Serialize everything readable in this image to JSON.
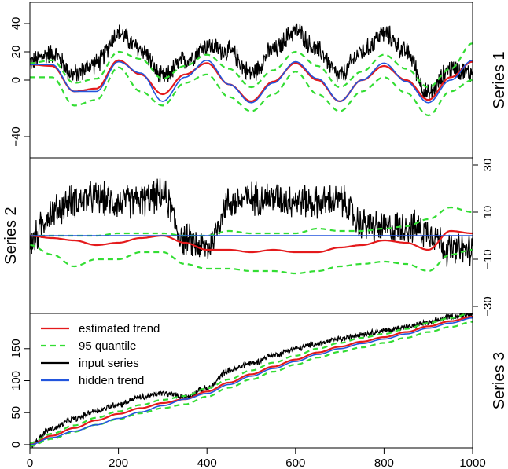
{
  "chart_data": {
    "type": "line",
    "x_range": [
      0,
      1000
    ],
    "x_ticks": [
      0,
      200,
      400,
      600,
      800,
      1000
    ],
    "colors": {
      "estimated_trend": "#e41a1c",
      "quantile": "#33dd33",
      "input_series": "#000000",
      "hidden_trend": "#2255dd"
    },
    "legend": {
      "placement": "top-left",
      "entries": [
        {
          "label": "estimated trend",
          "color": "#e41a1c",
          "dash": "solid"
        },
        {
          "label": "95 quantile",
          "color": "#33dd33",
          "dash": "dashed"
        },
        {
          "label": "input series",
          "color": "#000000",
          "dash": "solid"
        },
        {
          "label": "hidden trend",
          "color": "#2255dd",
          "dash": "solid"
        }
      ]
    },
    "panels": [
      {
        "name": "Series 1",
        "ylim": [
          -55,
          55
        ],
        "y_ticks": [
          -40,
          0,
          20,
          40
        ],
        "y_tick_labels": [
          "−40",
          "0",
          "20",
          "40"
        ],
        "y_axis_side": "left",
        "x": [
          0,
          50,
          100,
          150,
          200,
          250,
          300,
          350,
          400,
          450,
          500,
          550,
          600,
          650,
          700,
          750,
          800,
          850,
          900,
          950,
          1000
        ],
        "hidden_trend": [
          11,
          11,
          -8,
          -8,
          13,
          5,
          -15,
          2,
          14,
          -3,
          -16,
          -2,
          13,
          1,
          -15,
          0,
          12,
          -1,
          -16,
          0,
          14
        ],
        "estimated_trend": [
          11,
          10,
          -8,
          -6,
          14,
          4,
          -10,
          4,
          12,
          -3,
          -15,
          -1,
          12,
          0,
          -15,
          0,
          10,
          0,
          -14,
          2,
          13
        ],
        "upper_quantile": [
          12,
          14,
          -2,
          1,
          20,
          15,
          1,
          10,
          18,
          8,
          -5,
          7,
          20,
          10,
          -5,
          6,
          18,
          8,
          -5,
          8,
          26
        ],
        "lower_quantile": [
          2,
          2,
          -18,
          -14,
          9,
          -8,
          -18,
          -2,
          4,
          -12,
          -22,
          -10,
          6,
          -10,
          -22,
          -8,
          2,
          -9,
          -25,
          -8,
          0
        ],
        "input_series": [
          13,
          19,
          4,
          12,
          33,
          22,
          2,
          14,
          24,
          20,
          5,
          21,
          35,
          21,
          3,
          20,
          33,
          20,
          -10,
          8,
          5
        ],
        "input_noise": 6
      },
      {
        "name": "Series 2",
        "ylim": [
          -33,
          33
        ],
        "y_ticks": [
          -30,
          -10,
          10,
          30
        ],
        "y_tick_labels": [
          "−30",
          "−10",
          "10",
          "30"
        ],
        "y_axis_side": "right",
        "x": [
          0,
          50,
          100,
          150,
          200,
          250,
          300,
          350,
          400,
          450,
          500,
          550,
          600,
          650,
          700,
          750,
          800,
          850,
          900,
          950,
          1000
        ],
        "hidden_trend": [
          0,
          0,
          0,
          0,
          0,
          0,
          0,
          0,
          0,
          0,
          0,
          0,
          0,
          0,
          0,
          0,
          0,
          0,
          0,
          0,
          0
        ],
        "estimated_trend": [
          0,
          -1,
          -2,
          -4,
          -3,
          -1,
          0,
          -3,
          -6,
          -6,
          -7,
          -6,
          -7,
          -7,
          -5,
          -4,
          -2,
          -3,
          -6,
          2,
          1
        ],
        "upper_quantile": [
          0,
          0,
          0,
          0,
          1,
          1,
          1,
          0,
          0,
          2,
          1,
          1,
          1,
          3,
          2,
          2,
          3,
          4,
          7,
          12,
          10
        ],
        "lower_quantile": [
          -4,
          -8,
          -13,
          -10,
          -10,
          -7,
          -7,
          -12,
          -14,
          -14,
          -15,
          -15,
          -16,
          -15,
          -13,
          -12,
          -11,
          -12,
          -15,
          -8,
          -6
        ],
        "input_series": [
          -3,
          10,
          15,
          16,
          14,
          15,
          17,
          -2,
          -5,
          14,
          16,
          16,
          15,
          14,
          15,
          5,
          3,
          4,
          2,
          -6,
          -6
        ],
        "input_noise": 6
      },
      {
        "name": "Series 3",
        "ylim": [
          -5,
          205
        ],
        "y_ticks": [
          0,
          50,
          100,
          150
        ],
        "y_tick_labels": [
          "0",
          "50",
          "100",
          "150"
        ],
        "y_axis_side": "left",
        "x": [
          0,
          50,
          100,
          150,
          200,
          250,
          300,
          350,
          400,
          450,
          500,
          550,
          600,
          650,
          700,
          750,
          800,
          850,
          900,
          950,
          1000
        ],
        "hidden_trend": [
          0,
          11,
          21,
          31,
          41,
          51,
          61,
          71,
          80,
          94,
          107,
          119,
          130,
          141,
          150,
          158,
          165,
          173,
          182,
          190,
          198
        ],
        "estimated_trend": [
          0,
          14,
          26,
          38,
          48,
          57,
          65,
          71,
          83,
          97,
          110,
          122,
          133,
          144,
          153,
          161,
          168,
          176,
          185,
          193,
          200
        ],
        "upper_quantile": [
          2,
          17,
          30,
          42,
          52,
          62,
          70,
          76,
          88,
          102,
          116,
          128,
          139,
          150,
          159,
          167,
          173,
          181,
          190,
          198,
          206
        ],
        "lower_quantile": [
          -2,
          9,
          20,
          31,
          40,
          49,
          57,
          63,
          75,
          89,
          102,
          114,
          125,
          136,
          145,
          152,
          159,
          167,
          176,
          184,
          192
        ],
        "input_series": [
          0,
          25,
          40,
          53,
          63,
          74,
          80,
          75,
          88,
          116,
          127,
          140,
          150,
          158,
          165,
          173,
          178,
          184,
          190,
          200,
          205
        ],
        "input_noise": 4
      }
    ]
  }
}
